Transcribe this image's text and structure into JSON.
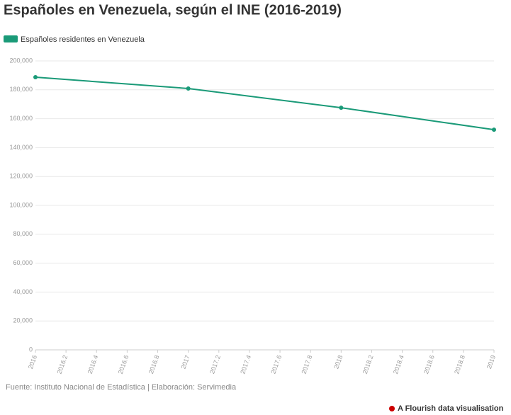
{
  "chart_data": {
    "type": "line",
    "title": "Españoles en Venezuela, según el INE (2016-2019)",
    "x": [
      2016,
      2017,
      2018,
      2019
    ],
    "series": [
      {
        "name": "Españoles residentes en Venezuela",
        "color": "#1a9a78",
        "values": [
          188700,
          180900,
          167600,
          152400
        ]
      }
    ],
    "xlim": [
      2016,
      2019
    ],
    "xticks": [
      2016,
      2016.2,
      2016.4,
      2016.6,
      2016.8,
      2017,
      2017.2,
      2017.4,
      2017.6,
      2017.8,
      2018,
      2018.2,
      2018.4,
      2018.6,
      2018.8,
      2019
    ],
    "ylim": [
      0,
      200000
    ],
    "yticks": [
      0,
      {
        "value": 20000,
        "label": "20,000"
      },
      {
        "value": 40000,
        "label": "40,000"
      },
      {
        "value": 60000,
        "label": "60,000"
      },
      {
        "value": 80000,
        "label": "80,000"
      },
      {
        "value": 100000,
        "label": "100,000"
      },
      {
        "value": 120000,
        "label": "120,000"
      },
      {
        "value": 140000,
        "label": "140,000"
      },
      {
        "value": 160000,
        "label": "160,000"
      },
      {
        "value": 180000,
        "label": "180,000"
      },
      {
        "value": 200000,
        "label": "200,000"
      }
    ],
    "grid": true,
    "legend": "top-left",
    "source": "Fuente: Instituto Nacional de Estadística | Elaboración: Servimedia",
    "credit": "A Flourish data visualisation"
  }
}
